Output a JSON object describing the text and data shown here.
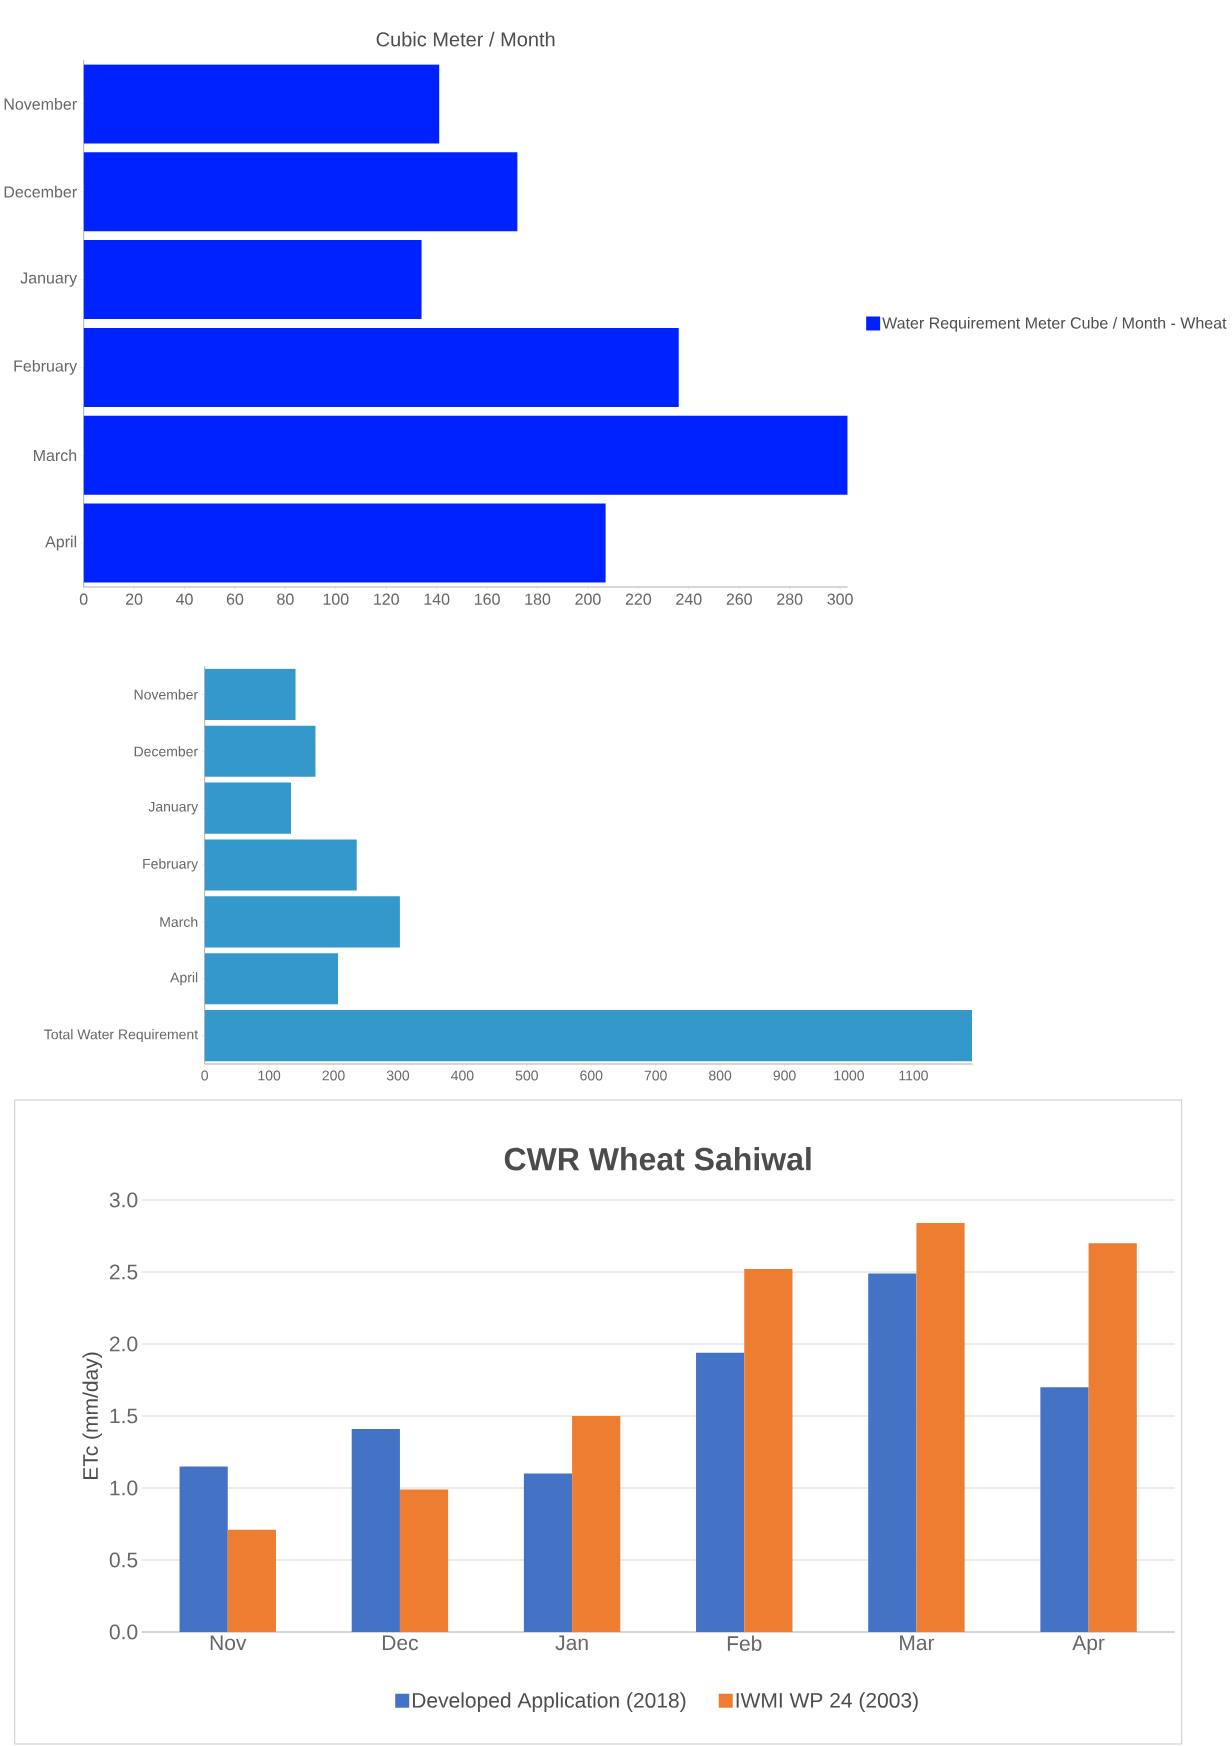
{
  "chart_data": [
    {
      "type": "bar",
      "orientation": "horizontal",
      "title": "Cubic Meter / Month",
      "categories": [
        "November",
        "December",
        "January",
        "February",
        "March",
        "April"
      ],
      "series": [
        {
          "name": "Water Requirement Meter Cube / Month -  Wheat",
          "color": "#0022ff",
          "values": [
            141,
            172,
            134,
            236,
            303,
            207
          ]
        }
      ],
      "xlim": [
        0,
        303
      ],
      "xticks": [
        0,
        20,
        40,
        60,
        80,
        100,
        120,
        140,
        160,
        180,
        200,
        220,
        240,
        260,
        280,
        300
      ],
      "legend": "right"
    },
    {
      "type": "bar",
      "orientation": "horizontal",
      "categories": [
        "November",
        "December",
        "January",
        "February",
        "March",
        "April",
        "Total Water Requirement"
      ],
      "series": [
        {
          "color": "#3498cb",
          "values": [
            141,
            172,
            134,
            236,
            303,
            207,
            1191
          ]
        }
      ],
      "xlim": [
        0,
        1192
      ],
      "xticks": [
        0,
        100,
        200,
        300,
        400,
        500,
        600,
        700,
        800,
        900,
        1000,
        1100
      ]
    },
    {
      "type": "bar",
      "title": "CWR Wheat Sahiwal",
      "ylabel": "ETc (mm/day)",
      "categories": [
        "Nov",
        "Dec",
        "Jan",
        "Feb",
        "Mar",
        "Apr"
      ],
      "series": [
        {
          "name": "Developed Application (2018)",
          "color": "#4472c4",
          "values": [
            1.15,
            1.41,
            1.1,
            1.94,
            2.49,
            1.7
          ]
        },
        {
          "name": "IWMI WP 24 (2003)",
          "color": "#ed7d31",
          "values": [
            0.71,
            0.99,
            1.5,
            2.52,
            2.84,
            2.7
          ]
        }
      ],
      "ylim": [
        0,
        3
      ],
      "yticks": [
        {
          "value": 0,
          "label": "0.0"
        },
        {
          "value": 0.5,
          "label": "0.5"
        },
        {
          "value": 1,
          "label": "1.0"
        },
        {
          "value": 1.5,
          "label": "1.5"
        },
        {
          "value": 2,
          "label": "2.0"
        },
        {
          "value": 2.5,
          "label": "2.5"
        },
        {
          "value": 3,
          "label": "3.0"
        }
      ],
      "grid": "y",
      "legend": "bottom"
    }
  ]
}
